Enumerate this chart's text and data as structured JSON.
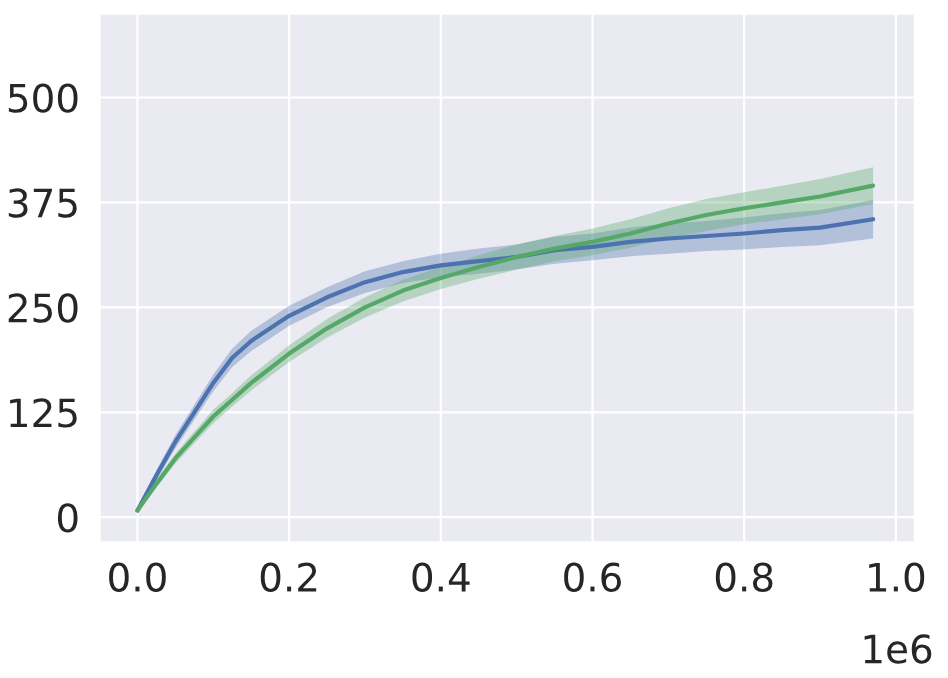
{
  "chart_data": {
    "type": "line",
    "x": [
      0,
      0.025,
      0.05,
      0.075,
      0.1,
      0.125,
      0.15,
      0.2,
      0.25,
      0.3,
      0.35,
      0.4,
      0.45,
      0.5,
      0.55,
      0.6,
      0.65,
      0.7,
      0.75,
      0.8,
      0.85,
      0.9,
      0.97
    ],
    "series": [
      {
        "color": "#4c72b0",
        "values": [
          8,
          50,
          90,
          125,
          160,
          190,
          210,
          240,
          262,
          280,
          292,
          300,
          305,
          310,
          318,
          322,
          328,
          332,
          335,
          338,
          342,
          345,
          355
        ],
        "lower": [
          6,
          44,
          82,
          116,
          150,
          179,
          198,
          228,
          250,
          267,
          279,
          286,
          290,
          295,
          302,
          306,
          311,
          314,
          317,
          319,
          322,
          324,
          332
        ],
        "upper": [
          10,
          56,
          98,
          134,
          170,
          201,
          222,
          252,
          274,
          293,
          305,
          314,
          320,
          325,
          334,
          338,
          345,
          350,
          353,
          357,
          362,
          366,
          378
        ]
      },
      {
        "color": "#55a868",
        "values": [
          8,
          40,
          70,
          95,
          120,
          140,
          160,
          195,
          225,
          250,
          270,
          285,
          298,
          310,
          320,
          328,
          338,
          350,
          360,
          368,
          375,
          382,
          395
        ],
        "lower": [
          6,
          35,
          64,
          88,
          112,
          132,
          151,
          185,
          214,
          238,
          257,
          272,
          284,
          295,
          305,
          312,
          321,
          332,
          341,
          349,
          355,
          361,
          373
        ],
        "upper": [
          10,
          45,
          76,
          102,
          128,
          148,
          169,
          205,
          236,
          262,
          283,
          298,
          312,
          325,
          335,
          344,
          355,
          368,
          379,
          387,
          395,
          403,
          417
        ]
      }
    ],
    "xlim": [
      -0.05,
      1.025
    ],
    "ylim": [
      -30,
      600
    ],
    "xticks": [
      {
        "value": 0,
        "label": "0.0"
      },
      0.2,
      0.4,
      0.6,
      0.8,
      {
        "value": 1,
        "label": "1.0"
      }
    ],
    "yticks": [
      0,
      125,
      250,
      375,
      500
    ],
    "grid": true,
    "annotations": [
      "1e6"
    ]
  }
}
